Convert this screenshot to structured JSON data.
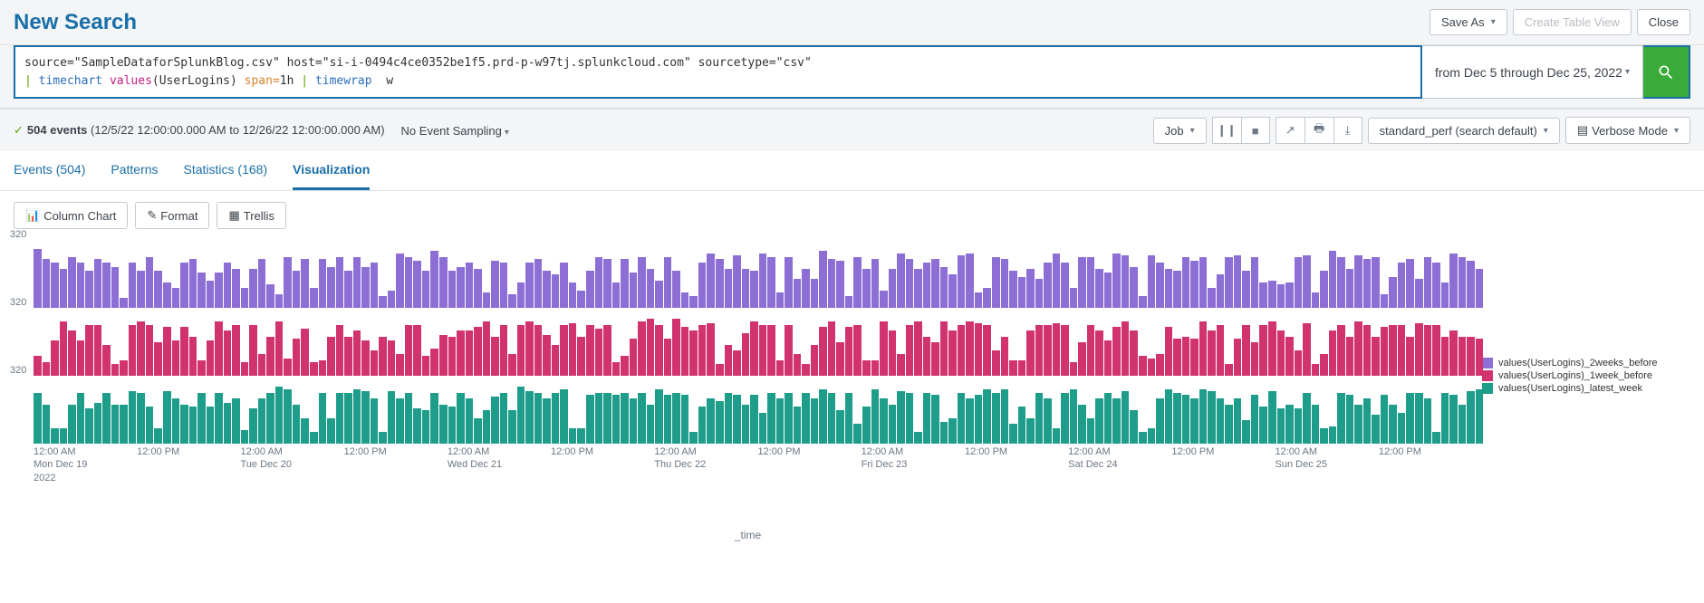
{
  "header": {
    "title": "New Search",
    "save_as": "Save As",
    "create_table": "Create Table View",
    "close": "Close"
  },
  "search": {
    "query_line1_prefix": "source=",
    "query_line1_src": "\"SampleDataforSplunkBlog.csv\"",
    "query_line1_host_k": " host=",
    "query_line1_host_v": "\"si-i-0494c4ce0352be1f5.prd-p-w97tj.splunkcloud.com\"",
    "query_line1_st_k": " sourcetype=",
    "query_line1_st_v": "\"csv\"",
    "query_line2_pipe1": "| ",
    "query_line2_cmd1": "timechart ",
    "query_line2_func": "values",
    "query_line2_funcarg": "(UserLogins) ",
    "query_line2_span_k": "span=",
    "query_line2_span_v": "1h",
    "query_line2_pipe2": " | ",
    "query_line2_cmd2": "timewrap",
    "query_line2_arg2": "  w",
    "time_range": "from Dec 5 through Dec 25, 2022"
  },
  "results_bar": {
    "events_count": "504 events",
    "time_span": " (12/5/22 12:00:00.000 AM to 12/26/22 12:00:00.000 AM)",
    "sampling": "No Event Sampling",
    "job": "Job",
    "perf": "standard_perf (search default)",
    "mode": "Verbose Mode"
  },
  "tabs": {
    "events": "Events (504)",
    "patterns": "Patterns",
    "statistics": "Statistics (168)",
    "visualization": "Visualization"
  },
  "viz_controls": {
    "chart_type": "Column Chart",
    "format": "Format",
    "trellis": "Trellis"
  },
  "chart": {
    "ymax_label": "320",
    "ymax": 320,
    "xaxis_label": "_time",
    "series": [
      {
        "name": "values(UserLogins)_2weeks_before",
        "color": "#8c6ed5",
        "values": [
          300,
          250,
          230,
          200,
          260,
          230,
          190,
          250,
          230,
          210,
          50,
          230,
          190,
          260,
          190,
          130,
          100,
          230,
          250,
          180,
          140,
          180,
          230,
          200,
          100,
          200,
          250,
          120,
          70,
          260,
          190,
          250,
          100,
          250,
          210,
          260,
          190,
          260,
          210,
          230,
          60,
          90,
          280,
          260,
          240,
          190,
          290,
          260,
          190,
          210,
          230,
          200,
          80,
          240,
          230,
          70,
          130,
          230,
          250,
          190,
          170,
          230,
          130,
          90,
          190,
          260,
          250,
          130,
          250,
          180,
          260,
          200,
          140,
          260,
          190,
          80,
          60,
          230,
          280,
          250,
          200,
          270,
          200,
          190,
          280,
          260,
          80,
          260,
          150,
          200,
          150,
          290,
          250,
          240,
          60,
          260,
          200,
          250,
          90,
          200,
          280,
          250,
          200,
          230,
          250,
          210,
          170,
          270,
          280,
          80,
          100,
          260,
          250,
          190,
          160,
          200,
          150,
          230,
          280,
          230,
          100,
          260,
          260,
          200,
          180,
          280,
          270,
          210,
          60,
          270,
          230,
          200,
          190,
          260,
          240,
          260,
          100,
          170,
          260,
          270,
          190,
          260,
          130,
          140,
          120,
          130,
          260,
          270,
          80,
          190,
          290,
          260,
          200,
          270,
          250,
          260,
          70,
          160,
          230,
          250,
          150,
          260,
          230,
          130,
          280,
          260,
          240,
          200
        ]
      },
      {
        "name": "values(UserLogins)_1week_before",
        "color": "#d1336f",
        "values": [
          100,
          70,
          180,
          280,
          230,
          180,
          260,
          260,
          160,
          60,
          80,
          260,
          280,
          260,
          170,
          250,
          180,
          250,
          200,
          80,
          180,
          280,
          230,
          260,
          70,
          260,
          110,
          200,
          280,
          90,
          190,
          240,
          70,
          80,
          200,
          260,
          200,
          230,
          180,
          130,
          200,
          180,
          110,
          260,
          260,
          100,
          140,
          210,
          200,
          230,
          230,
          250,
          280,
          200,
          260,
          110,
          260,
          280,
          260,
          210,
          160,
          260,
          270,
          200,
          260,
          240,
          260,
          70,
          100,
          190,
          280,
          290,
          260,
          190,
          290,
          250,
          230,
          260,
          270,
          60,
          160,
          130,
          220,
          280,
          260,
          260,
          80,
          260,
          110,
          60,
          160,
          250,
          280,
          170,
          250,
          260,
          80,
          80,
          280,
          230,
          110,
          260,
          280,
          200,
          170,
          280,
          230,
          260,
          280,
          270,
          260,
          130,
          200,
          80,
          80,
          230,
          260,
          260,
          270,
          260,
          70,
          170,
          260,
          230,
          180,
          250,
          280,
          230,
          100,
          90,
          110,
          250,
          190,
          200,
          190,
          280,
          230,
          260,
          60,
          190,
          260,
          170,
          260,
          280,
          230,
          200,
          130,
          270,
          60,
          110,
          230,
          260,
          200,
          280,
          260,
          200,
          250,
          260,
          260,
          200,
          270,
          260,
          260,
          200,
          230,
          200,
          200,
          190
        ]
      },
      {
        "name": "values(UserLogins)_latest_week",
        "color": "#1e9e8a",
        "values": [
          260,
          200,
          80,
          80,
          200,
          260,
          180,
          210,
          260,
          200,
          200,
          270,
          260,
          190,
          80,
          270,
          230,
          200,
          190,
          260,
          190,
          260,
          210,
          230,
          70,
          180,
          230,
          260,
          290,
          280,
          200,
          130,
          60,
          260,
          130,
          260,
          260,
          280,
          270,
          230,
          60,
          270,
          230,
          260,
          180,
          170,
          260,
          200,
          190,
          260,
          230,
          130,
          170,
          240,
          260,
          170,
          290,
          270,
          260,
          230,
          260,
          280,
          80,
          80,
          250,
          260,
          260,
          250,
          260,
          230,
          260,
          200,
          280,
          250,
          260,
          250,
          60,
          190,
          230,
          220,
          260,
          250,
          200,
          250,
          160,
          260,
          230,
          260,
          190,
          260,
          230,
          280,
          260,
          170,
          260,
          100,
          190,
          280,
          230,
          200,
          270,
          260,
          60,
          260,
          250,
          110,
          130,
          260,
          230,
          250,
          280,
          260,
          280,
          100,
          190,
          130,
          260,
          230,
          80,
          260,
          280,
          200,
          130,
          230,
          260,
          230,
          270,
          170,
          60,
          80,
          230,
          280,
          260,
          250,
          230,
          280,
          270,
          230,
          200,
          230,
          120,
          250,
          190,
          270,
          180,
          200,
          180,
          260,
          200,
          80,
          90,
          260,
          250,
          200,
          230,
          150,
          250,
          200,
          160,
          260,
          260,
          230,
          60,
          260,
          250,
          200,
          270,
          280
        ]
      }
    ],
    "xticks": [
      {
        "pos": 0.0,
        "l1": "12:00 AM",
        "l2": "Mon Dec 19",
        "l3": "2022"
      },
      {
        "pos": 0.0714,
        "l1": "12:00 PM",
        "l2": "",
        "l3": ""
      },
      {
        "pos": 0.1429,
        "l1": "12:00 AM",
        "l2": "Tue Dec 20",
        "l3": ""
      },
      {
        "pos": 0.2143,
        "l1": "12:00 PM",
        "l2": "",
        "l3": ""
      },
      {
        "pos": 0.2857,
        "l1": "12:00 AM",
        "l2": "Wed Dec 21",
        "l3": ""
      },
      {
        "pos": 0.3571,
        "l1": "12:00 PM",
        "l2": "",
        "l3": ""
      },
      {
        "pos": 0.4286,
        "l1": "12:00 AM",
        "l2": "Thu Dec 22",
        "l3": ""
      },
      {
        "pos": 0.5,
        "l1": "12:00 PM",
        "l2": "",
        "l3": ""
      },
      {
        "pos": 0.5714,
        "l1": "12:00 AM",
        "l2": "Fri Dec 23",
        "l3": ""
      },
      {
        "pos": 0.6429,
        "l1": "12:00 PM",
        "l2": "",
        "l3": ""
      },
      {
        "pos": 0.7143,
        "l1": "12:00 AM",
        "l2": "Sat Dec 24",
        "l3": ""
      },
      {
        "pos": 0.7857,
        "l1": "12:00 PM",
        "l2": "",
        "l3": ""
      },
      {
        "pos": 0.8571,
        "l1": "12:00 AM",
        "l2": "Sun Dec 25",
        "l3": ""
      },
      {
        "pos": 0.9286,
        "l1": "12:00 PM",
        "l2": "",
        "l3": ""
      }
    ]
  }
}
